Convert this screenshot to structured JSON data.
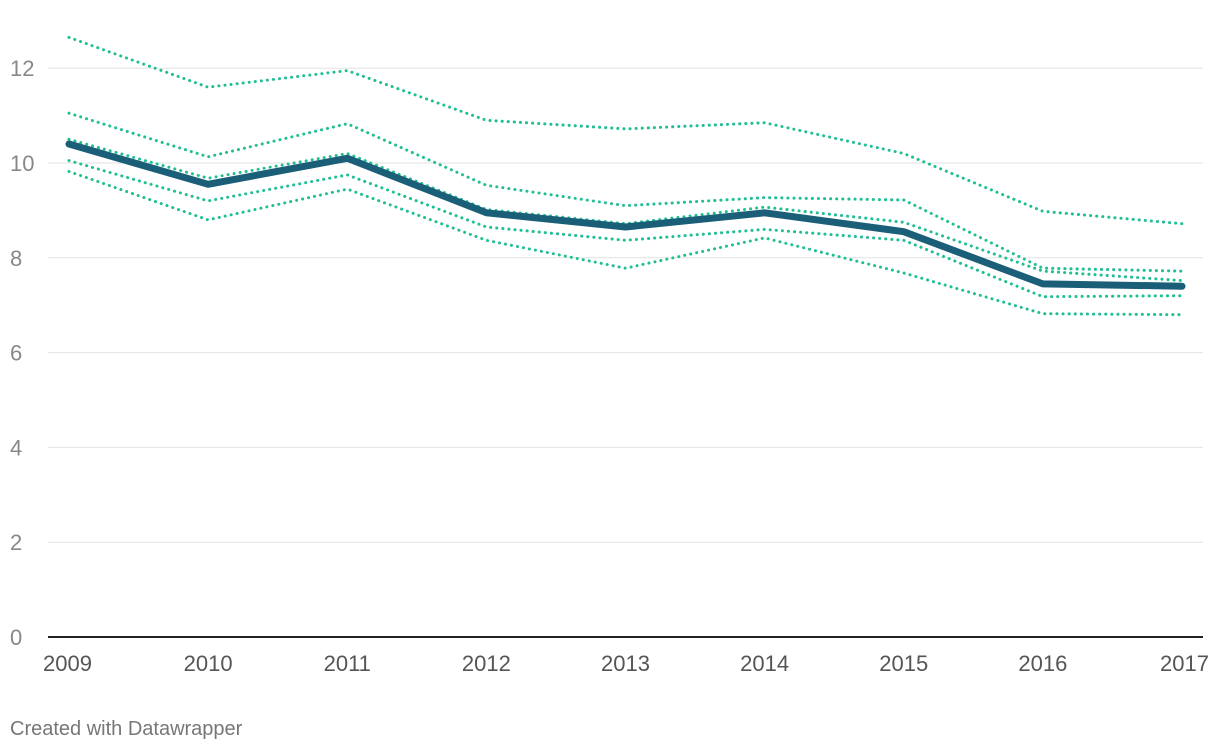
{
  "chart_data": {
    "type": "line",
    "x": [
      "2009",
      "2010",
      "2011",
      "2012",
      "2013",
      "2014",
      "2015",
      "2016",
      "2017"
    ],
    "ylim": [
      0,
      13
    ],
    "yticks": [
      0,
      2,
      4,
      6,
      8,
      10,
      12
    ],
    "grid": true,
    "legend": "none",
    "series": [
      {
        "style": "solid",
        "color": "#1a5e78",
        "values": [
          10.4,
          9.55,
          10.1,
          8.95,
          8.65,
          8.95,
          8.55,
          7.45,
          7.4
        ]
      },
      {
        "style": "dotted",
        "color": "#1fbf93",
        "values": [
          12.65,
          11.6,
          11.95,
          10.9,
          10.72,
          10.85,
          10.2,
          8.98,
          8.72
        ]
      },
      {
        "style": "dotted",
        "color": "#1fbf93",
        "values": [
          11.05,
          10.13,
          10.83,
          9.53,
          9.1,
          9.27,
          9.22,
          7.78,
          7.72
        ]
      },
      {
        "style": "dotted",
        "color": "#1fbf93",
        "values": [
          10.5,
          9.68,
          10.2,
          9.02,
          8.72,
          9.07,
          8.75,
          7.72,
          7.52
        ]
      },
      {
        "style": "dotted",
        "color": "#1fbf93",
        "values": [
          10.05,
          9.2,
          9.75,
          8.65,
          8.37,
          8.6,
          8.37,
          7.18,
          7.2
        ]
      },
      {
        "style": "dotted",
        "color": "#1fbf93",
        "values": [
          9.82,
          8.8,
          9.45,
          8.37,
          7.78,
          8.42,
          7.68,
          6.82,
          6.8
        ]
      }
    ]
  },
  "footer": {
    "credit": "Created with Datawrapper"
  }
}
